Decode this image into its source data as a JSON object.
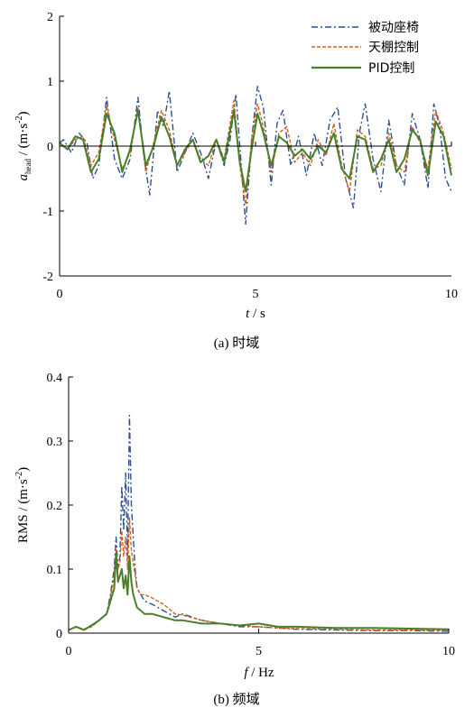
{
  "captions": {
    "a": "(a)  时域",
    "b": "(b)  频域"
  },
  "colors": {
    "passive": "#2f4f8f",
    "skyhook": "#d0601f",
    "pid": "#4a7f2a"
  },
  "chart_data": [
    {
      "type": "line",
      "xlabel_var": "t",
      "xlabel_unit": " / s",
      "ylabel_var": "a",
      "ylabel_sub": "head",
      "ylabel_unit": " / (m·s",
      "ylabel_exp": "-2",
      "ylabel_close": ")",
      "xlim": [
        0,
        10
      ],
      "ylim": [
        -2,
        2
      ],
      "xticks": [
        "0",
        "5",
        "10"
      ],
      "yticks": [
        "-2",
        "-1",
        "0",
        "1",
        "2"
      ],
      "legend": [
        "被动座椅",
        "天棚控制",
        "PID控制"
      ],
      "legend_position": "top-right",
      "series": [
        {
          "name": "被动座椅",
          "style": "dashdot",
          "x": [
            0,
            0.1,
            0.3,
            0.5,
            0.7,
            0.85,
            1.0,
            1.2,
            1.4,
            1.6,
            1.8,
            2.0,
            2.15,
            2.3,
            2.5,
            2.65,
            2.8,
            3.0,
            3.2,
            3.4,
            3.6,
            3.8,
            4.0,
            4.2,
            4.35,
            4.5,
            4.65,
            4.75,
            4.9,
            5.05,
            5.2,
            5.4,
            5.55,
            5.7,
            5.9,
            6.1,
            6.3,
            6.5,
            6.7,
            6.9,
            7.1,
            7.3,
            7.5,
            7.65,
            7.8,
            8.0,
            8.2,
            8.4,
            8.6,
            8.8,
            9.0,
            9.2,
            9.4,
            9.55,
            9.7,
            9.85,
            10.0
          ],
          "y": [
            0.05,
            0.1,
            -0.1,
            0.2,
            0.05,
            -0.5,
            -0.3,
            0.75,
            -0.2,
            -0.5,
            -0.2,
            0.75,
            -0.15,
            -0.75,
            0.55,
            0.3,
            0.85,
            -0.4,
            -0.1,
            0.2,
            -0.1,
            -0.5,
            0.1,
            -0.3,
            0.1,
            0.8,
            -0.4,
            -1.2,
            0.1,
            0.92,
            0.6,
            -0.6,
            0.35,
            0.55,
            -0.3,
            0.15,
            -0.45,
            0.2,
            -0.3,
            0.4,
            0.6,
            -0.5,
            -0.95,
            0.2,
            0.65,
            -0.2,
            -0.7,
            0.4,
            -0.3,
            -0.6,
            0.5,
            0.1,
            -0.65,
            0.65,
            0.3,
            -0.5,
            -0.7
          ]
        },
        {
          "name": "天棚控制",
          "style": "dashed",
          "x": [
            0,
            0.2,
            0.4,
            0.6,
            0.8,
            1.0,
            1.2,
            1.4,
            1.6,
            1.8,
            2.0,
            2.2,
            2.4,
            2.6,
            2.8,
            3.0,
            3.2,
            3.4,
            3.6,
            3.8,
            4.0,
            4.2,
            4.45,
            4.6,
            4.75,
            4.9,
            5.05,
            5.2,
            5.4,
            5.6,
            5.8,
            6.0,
            6.2,
            6.4,
            6.6,
            6.8,
            7.0,
            7.2,
            7.4,
            7.6,
            7.8,
            8.0,
            8.2,
            8.4,
            8.6,
            8.8,
            9.0,
            9.2,
            9.4,
            9.6,
            9.8,
            10.0
          ],
          "y": [
            0.05,
            -0.05,
            0.1,
            0.15,
            -0.3,
            -0.1,
            0.62,
            0.1,
            -0.35,
            -0.1,
            0.6,
            -0.4,
            0.05,
            0.55,
            0.25,
            -0.3,
            -0.1,
            0.1,
            -0.2,
            -0.3,
            0.1,
            -0.2,
            0.7,
            -0.3,
            -0.9,
            0.1,
            0.65,
            0.3,
            -0.4,
            0.2,
            0.3,
            -0.25,
            -0.1,
            -0.3,
            0.1,
            -0.15,
            0.35,
            -0.3,
            -0.7,
            0.25,
            0.15,
            -0.35,
            -0.3,
            0.2,
            -0.3,
            -0.4,
            0.3,
            0.05,
            -0.35,
            0.55,
            0.2,
            -0.35
          ]
        },
        {
          "name": "PID控制",
          "style": "solid",
          "x": [
            0,
            0.2,
            0.4,
            0.6,
            0.8,
            1.0,
            1.2,
            1.4,
            1.6,
            1.8,
            2.0,
            2.2,
            2.4,
            2.6,
            2.8,
            3.0,
            3.2,
            3.4,
            3.6,
            3.8,
            4.0,
            4.2,
            4.45,
            4.6,
            4.75,
            4.9,
            5.05,
            5.2,
            5.4,
            5.6,
            5.8,
            6.0,
            6.2,
            6.4,
            6.6,
            6.8,
            7.0,
            7.2,
            7.4,
            7.6,
            7.8,
            8.0,
            8.2,
            8.4,
            8.6,
            8.8,
            9.0,
            9.2,
            9.4,
            9.6,
            9.8,
            10.0
          ],
          "y": [
            0.05,
            -0.05,
            0.15,
            0.1,
            -0.4,
            -0.2,
            0.5,
            0.2,
            -0.4,
            -0.05,
            0.55,
            -0.3,
            0.0,
            0.45,
            0.15,
            -0.3,
            -0.05,
            0.1,
            -0.25,
            -0.15,
            0.1,
            -0.25,
            0.55,
            -0.25,
            -0.7,
            -0.05,
            0.5,
            0.2,
            -0.3,
            0.15,
            0.05,
            -0.15,
            -0.05,
            -0.2,
            0.0,
            -0.1,
            0.2,
            -0.35,
            -0.5,
            0.15,
            0.1,
            -0.4,
            -0.2,
            0.1,
            -0.4,
            -0.2,
            0.25,
            0.1,
            -0.45,
            0.38,
            0.15,
            -0.45
          ]
        }
      ]
    },
    {
      "type": "line",
      "xlabel_var": "f",
      "xlabel_unit": " / Hz",
      "ylabel_text": "RMS / (m·s",
      "ylabel_exp": "-2",
      "ylabel_close": ")",
      "xlim": [
        0,
        10
      ],
      "ylim": [
        0,
        0.4
      ],
      "xticks": [
        "0",
        "5",
        "10"
      ],
      "yticks": [
        "0",
        "0.1",
        "0.2",
        "0.3",
        "0.4"
      ],
      "series": [
        {
          "name": "被动座椅",
          "style": "dashdot",
          "x": [
            0,
            0.2,
            0.4,
            0.6,
            0.8,
            1.0,
            1.1,
            1.2,
            1.25,
            1.3,
            1.35,
            1.4,
            1.45,
            1.5,
            1.55,
            1.6,
            1.65,
            1.7,
            1.75,
            1.8,
            1.9,
            2.0,
            2.2,
            2.5,
            2.8,
            3.0,
            3.5,
            4.0,
            4.5,
            5.0,
            5.5,
            6.0,
            7.0,
            8.0,
            9.0,
            10.0
          ],
          "y": [
            0.005,
            0.01,
            0.005,
            0.01,
            0.02,
            0.03,
            0.06,
            0.1,
            0.15,
            0.1,
            0.12,
            0.23,
            0.16,
            0.25,
            0.12,
            0.34,
            0.2,
            0.15,
            0.1,
            0.07,
            0.06,
            0.05,
            0.045,
            0.035,
            0.025,
            0.03,
            0.02,
            0.015,
            0.01,
            0.01,
            0.008,
            0.006,
            0.005,
            0.004,
            0.004,
            0.003
          ]
        },
        {
          "name": "天棚控制",
          "style": "dashed",
          "x": [
            0,
            0.2,
            0.4,
            0.6,
            0.8,
            1.0,
            1.1,
            1.2,
            1.25,
            1.3,
            1.35,
            1.4,
            1.45,
            1.5,
            1.55,
            1.6,
            1.65,
            1.7,
            1.75,
            1.8,
            1.9,
            2.0,
            2.2,
            2.5,
            2.8,
            3.0,
            3.5,
            4.0,
            4.5,
            5.0,
            5.5,
            6.0,
            7.0,
            8.0,
            9.0,
            10.0
          ],
          "y": [
            0.005,
            0.01,
            0.006,
            0.01,
            0.02,
            0.03,
            0.055,
            0.09,
            0.13,
            0.1,
            0.11,
            0.16,
            0.12,
            0.15,
            0.1,
            0.18,
            0.13,
            0.11,
            0.09,
            0.07,
            0.06,
            0.06,
            0.055,
            0.045,
            0.03,
            0.028,
            0.02,
            0.015,
            0.012,
            0.01,
            0.008,
            0.007,
            0.006,
            0.005,
            0.005,
            0.004
          ]
        },
        {
          "name": "PID控制",
          "style": "solid",
          "x": [
            0,
            0.2,
            0.4,
            0.6,
            0.8,
            1.0,
            1.1,
            1.2,
            1.25,
            1.3,
            1.35,
            1.4,
            1.45,
            1.5,
            1.55,
            1.6,
            1.65,
            1.7,
            1.75,
            1.8,
            1.9,
            2.0,
            2.2,
            2.5,
            2.8,
            3.0,
            3.5,
            4.0,
            4.5,
            5.0,
            5.5,
            6.0,
            7.0,
            8.0,
            9.0,
            10.0
          ],
          "y": [
            0.005,
            0.01,
            0.005,
            0.012,
            0.02,
            0.03,
            0.05,
            0.07,
            0.125,
            0.08,
            0.09,
            0.1,
            0.07,
            0.09,
            0.06,
            0.12,
            0.08,
            0.06,
            0.05,
            0.04,
            0.035,
            0.03,
            0.03,
            0.025,
            0.02,
            0.02,
            0.015,
            0.015,
            0.012,
            0.015,
            0.01,
            0.01,
            0.008,
            0.008,
            0.007,
            0.006
          ]
        }
      ]
    }
  ]
}
